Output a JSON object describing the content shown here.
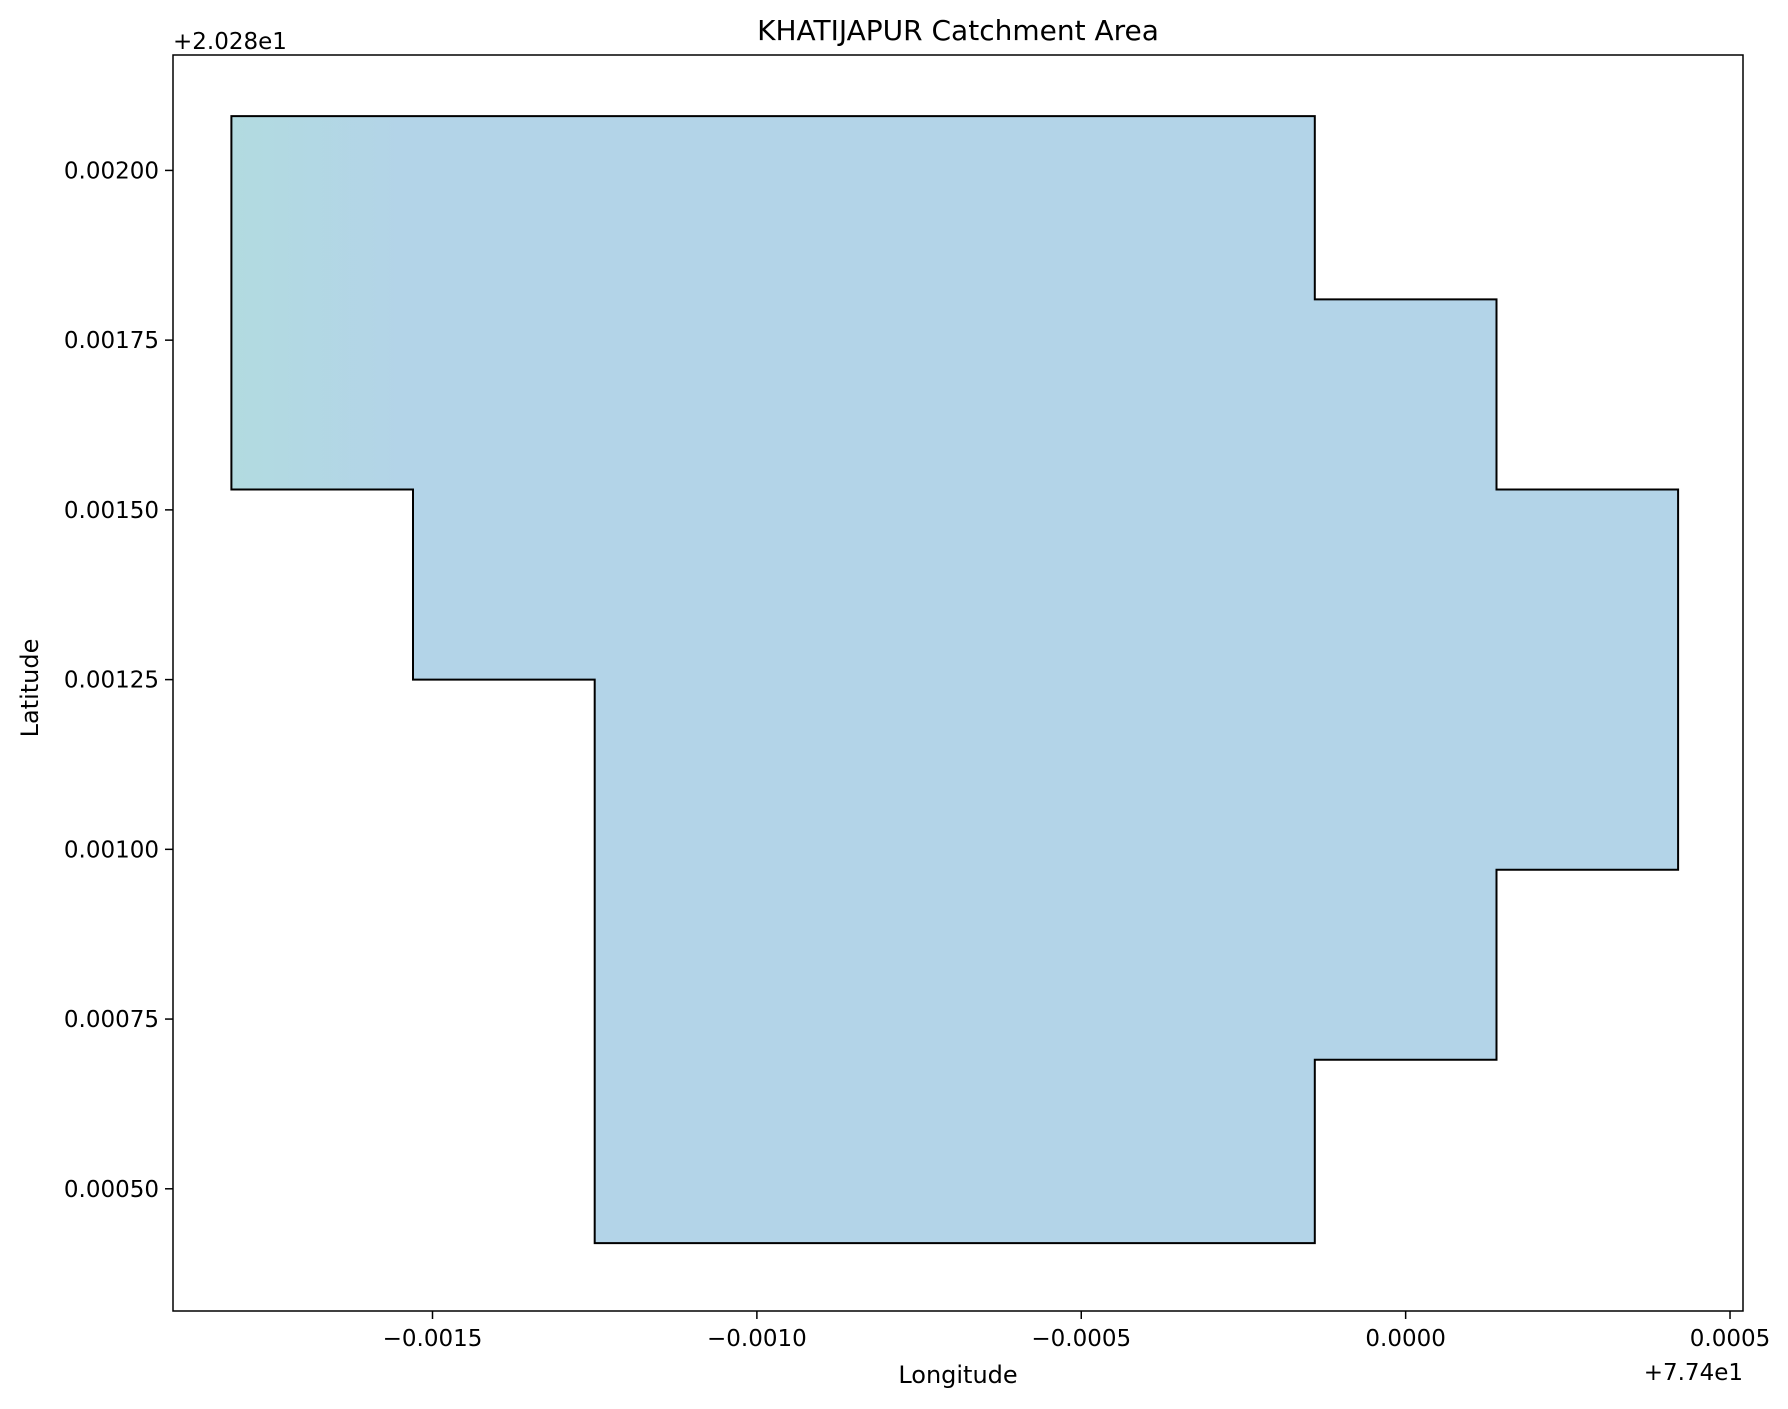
{
  "chart_data": {
    "type": "area",
    "title": "KHATIJAPUR Catchment Area",
    "xlabel": "Longitude",
    "ylabel": "Latitude",
    "x_offset_label": "+7.74e1",
    "y_offset_label": "+2.028e1",
    "xlim": [
      -0.0019,
      0.00052
    ],
    "ylim": [
      0.00032,
      0.00217
    ],
    "x_ticks": [
      {
        "value": -0.0015,
        "label": "−0.0015"
      },
      {
        "value": -0.001,
        "label": "−0.0010"
      },
      {
        "value": -0.0005,
        "label": "−0.0005"
      },
      {
        "value": 0.0,
        "label": "0.0000"
      },
      {
        "value": 0.0005,
        "label": "0.0005"
      }
    ],
    "y_ticks": [
      {
        "value": 0.0005,
        "label": "0.00050"
      },
      {
        "value": 0.00075,
        "label": "0.00075"
      },
      {
        "value": 0.001,
        "label": "0.00100"
      },
      {
        "value": 0.00125,
        "label": "0.00125"
      },
      {
        "value": 0.0015,
        "label": "0.00150"
      },
      {
        "value": 0.00175,
        "label": "0.00175"
      },
      {
        "value": 0.002,
        "label": "0.00200"
      }
    ],
    "grid": false,
    "fill_color": "#b3d4e8",
    "fill_color_left": "#b2dbe0",
    "edge_color": "#000000",
    "polygon": [
      {
        "x": -0.00181,
        "y": 0.00208
      },
      {
        "x": -0.00014,
        "y": 0.00208
      },
      {
        "x": -0.00014,
        "y": 0.00181
      },
      {
        "x": 0.00014,
        "y": 0.00181
      },
      {
        "x": 0.00014,
        "y": 0.00153
      },
      {
        "x": 0.00042,
        "y": 0.00153
      },
      {
        "x": 0.00042,
        "y": 0.00097
      },
      {
        "x": 0.00014,
        "y": 0.00097
      },
      {
        "x": 0.00014,
        "y": 0.00069
      },
      {
        "x": -0.00014,
        "y": 0.00069
      },
      {
        "x": -0.00014,
        "y": 0.00042
      },
      {
        "x": -0.00125,
        "y": 0.00042
      },
      {
        "x": -0.00125,
        "y": 0.00125
      },
      {
        "x": -0.00153,
        "y": 0.00125
      },
      {
        "x": -0.00153,
        "y": 0.00153
      },
      {
        "x": -0.00181,
        "y": 0.00153
      }
    ]
  }
}
